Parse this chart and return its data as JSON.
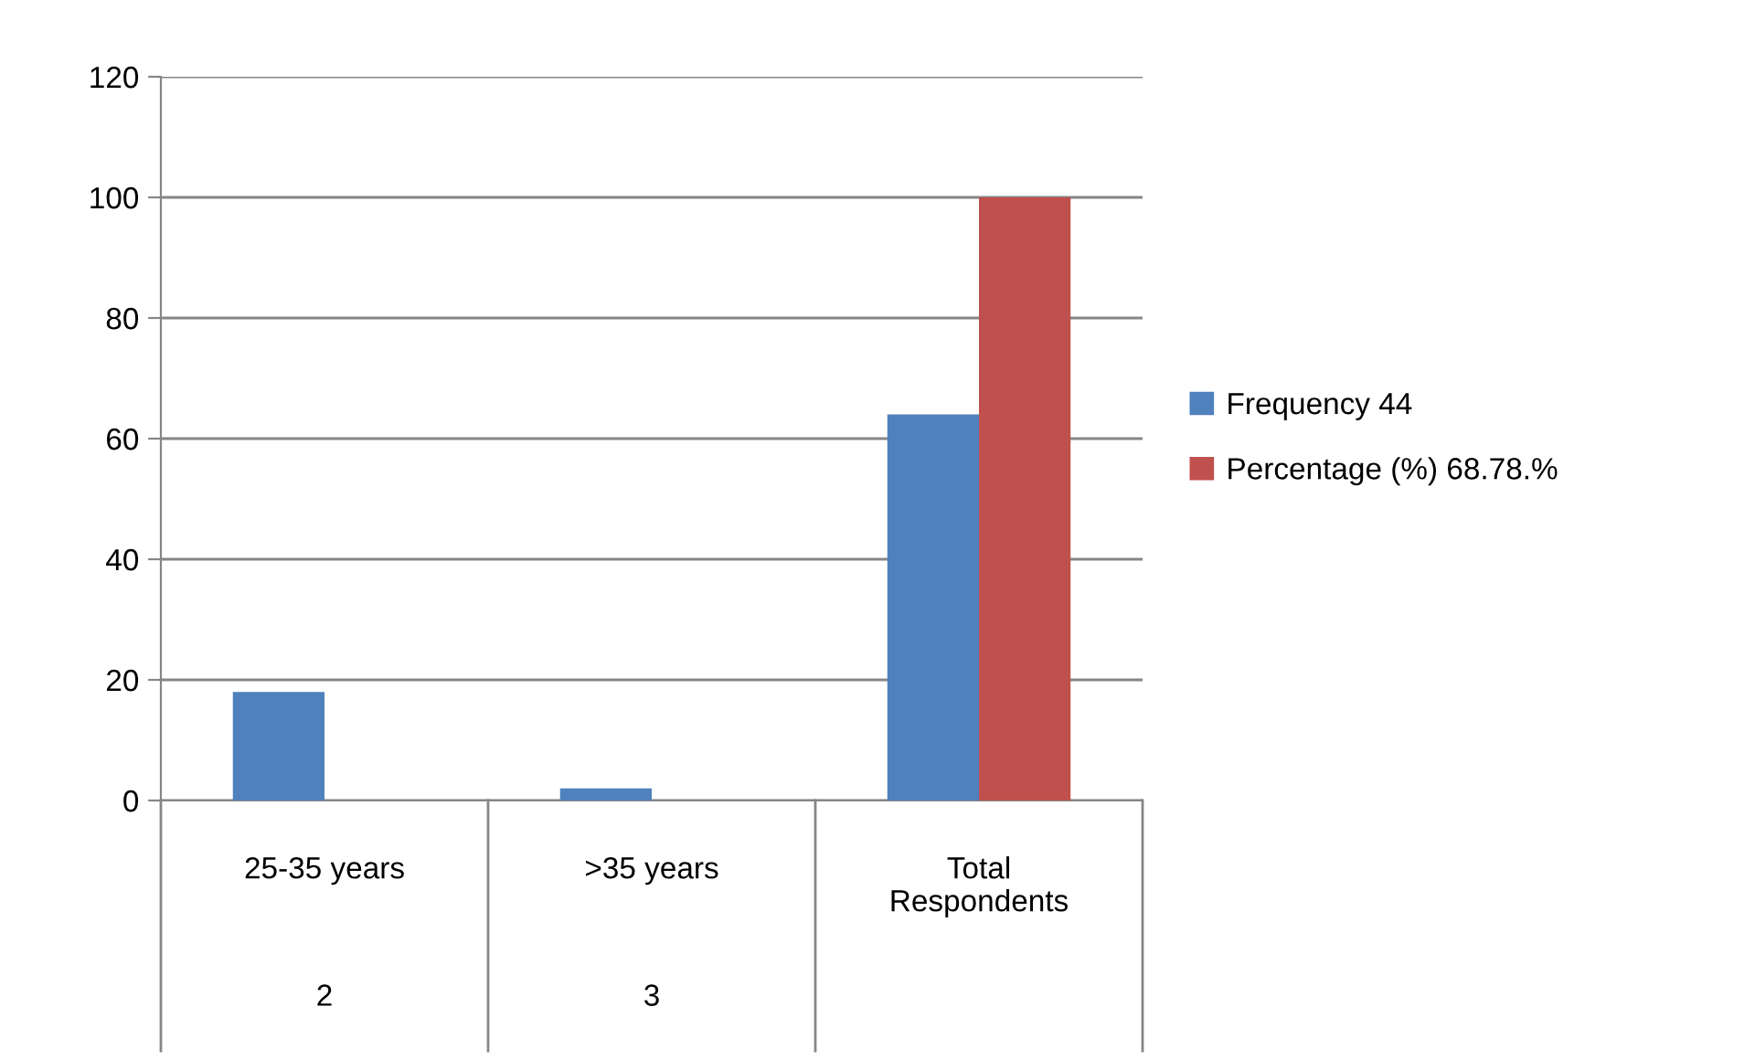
{
  "chart_data": {
    "type": "bar",
    "categories": [
      "25-35 years",
      ">35 years",
      "Total\nRespondents"
    ],
    "series": [
      {
        "name": "Frequency 44",
        "color": "#4f81bd",
        "values": [
          18,
          2,
          64
        ]
      },
      {
        "name": "Percentage (%) 68.78.%",
        "color": "#c0504d",
        "values": [
          0,
          0,
          100
        ]
      }
    ],
    "annotations": [
      "2",
      "3"
    ],
    "ylim": [
      0,
      120
    ],
    "yticks": [
      0,
      20,
      40,
      60,
      80,
      100,
      120
    ],
    "grid": "y",
    "legend": "right"
  }
}
